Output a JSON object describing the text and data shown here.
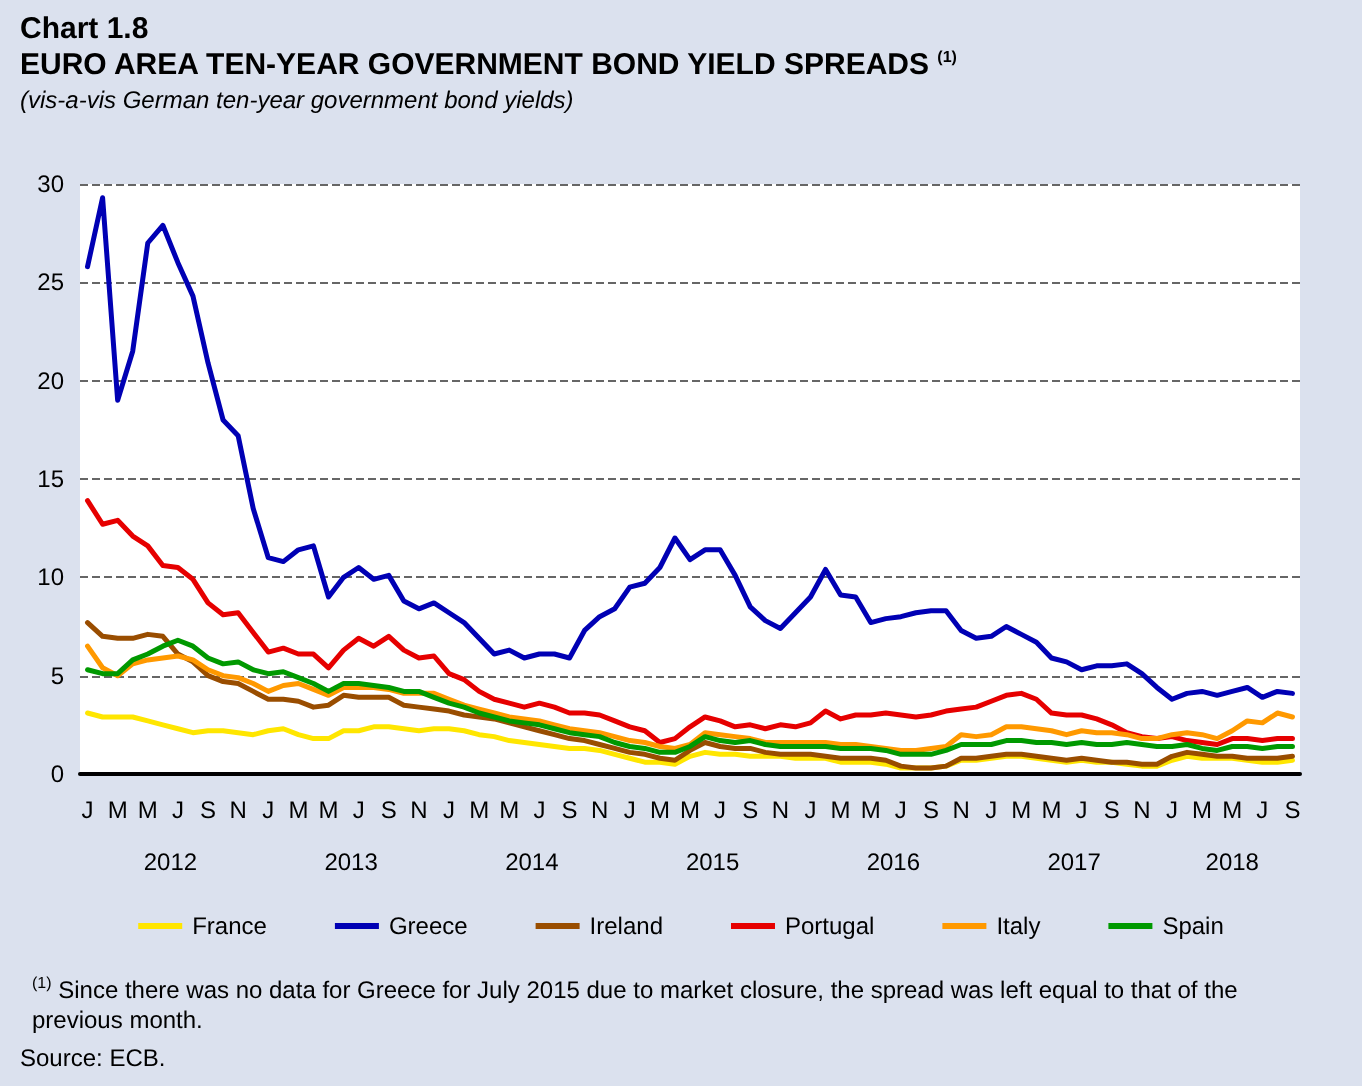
{
  "chart_data": {
    "type": "line",
    "title": "EURO AREA TEN-YEAR GOVERNMENT BOND YIELD SPREADS $^{(1)}$",
    "subtitle": "(vis-a-vis German ten-year government bond yields)",
    "annotations": [
      "Chart 1.8",
      "2012",
      "2013",
      "2014",
      "2015",
      "2016",
      "2017",
      "2018",
      "$^{(1)}$ Since there was no data for Greece for July 2015 due to market closure, the spread was left equal to that of the previous month.",
      "Source: ECB."
    ],
    "categories": [
      "J",
      null,
      "M",
      null,
      "M",
      null,
      "J",
      null,
      "S",
      null,
      "N",
      null,
      "J",
      null,
      "M",
      null,
      "M",
      null,
      "J",
      null,
      "S",
      null,
      "N",
      null,
      "J",
      null,
      "M",
      null,
      "M",
      null,
      "J",
      null,
      "S",
      null,
      "N",
      null,
      "J",
      null,
      "M",
      null,
      "M",
      null,
      "J",
      null,
      "S",
      null,
      "N",
      null,
      "J",
      null,
      "M",
      null,
      "M",
      null,
      "J",
      null,
      "S",
      null,
      "N",
      null,
      "J",
      null,
      "M",
      null,
      "M",
      null,
      "J",
      null,
      "S",
      null,
      "N",
      null,
      "J",
      null,
      "M",
      null,
      "M",
      null,
      "J",
      null,
      "S"
    ],
    "series": [
      {
        "name": "France",
        "color": "#ffe600",
        "values": [
          3.1,
          2.9,
          2.9,
          2.9,
          2.7,
          2.5,
          2.3,
          2.1,
          2.2,
          2.2,
          2.1,
          2.0,
          2.2,
          2.3,
          2.0,
          1.8,
          1.8,
          2.2,
          2.2,
          2.4,
          2.4,
          2.3,
          2.2,
          2.3,
          2.3,
          2.2,
          2.0,
          1.9,
          1.7,
          1.6,
          1.5,
          1.4,
          1.3,
          1.3,
          1.2,
          1.0,
          0.8,
          0.6,
          0.6,
          0.5,
          0.9,
          1.1,
          1.0,
          1.0,
          0.9,
          0.9,
          0.9,
          0.8,
          0.8,
          0.8,
          0.6,
          0.6,
          0.6,
          0.5,
          0.3,
          0.3,
          0.3,
          0.4,
          0.7,
          0.7,
          0.8,
          0.9,
          0.9,
          0.8,
          0.7,
          0.6,
          0.7,
          0.6,
          0.6,
          0.5,
          0.4,
          0.4,
          0.7,
          0.9,
          0.8,
          0.8,
          0.8,
          0.7,
          0.6,
          0.6,
          0.7
        ]
      },
      {
        "name": "Greece",
        "color": "#0000b4",
        "values": [
          25.8,
          29.3,
          19.0,
          21.5,
          27.0,
          27.9,
          26.0,
          24.3,
          20.9,
          18.0,
          17.2,
          13.5,
          11.0,
          10.8,
          11.4,
          11.6,
          9.0,
          10.0,
          10.5,
          9.9,
          10.1,
          8.8,
          8.4,
          8.7,
          8.2,
          7.7,
          6.9,
          6.1,
          6.3,
          5.9,
          6.1,
          6.1,
          5.9,
          7.3,
          8.0,
          8.4,
          9.5,
          9.7,
          10.5,
          12.0,
          10.9,
          11.4,
          11.4,
          10.1,
          8.5,
          7.8,
          7.4,
          8.2,
          9.0,
          10.4,
          9.1,
          9.0,
          7.7,
          7.9,
          8.0,
          8.2,
          8.3,
          8.3,
          7.3,
          6.9,
          7.0,
          7.5,
          7.1,
          6.7,
          5.9,
          5.7,
          5.3,
          5.5,
          5.5,
          5.6,
          5.1,
          4.4,
          3.8,
          4.1,
          4.2,
          4.0,
          4.2,
          4.4,
          3.9,
          4.2,
          4.1
        ]
      },
      {
        "name": "Ireland",
        "color": "#994d00",
        "values": [
          7.7,
          7.0,
          6.9,
          6.9,
          7.1,
          7.0,
          6.1,
          5.7,
          5.0,
          4.7,
          4.6,
          4.2,
          3.8,
          3.8,
          3.7,
          3.4,
          3.5,
          4.0,
          3.9,
          3.9,
          3.9,
          3.5,
          3.4,
          3.3,
          3.2,
          3.0,
          2.9,
          2.8,
          2.6,
          2.4,
          2.2,
          2.0,
          1.8,
          1.7,
          1.5,
          1.3,
          1.1,
          1.0,
          0.8,
          0.7,
          1.2,
          1.6,
          1.4,
          1.3,
          1.3,
          1.1,
          1.0,
          1.0,
          1.0,
          0.9,
          0.8,
          0.8,
          0.8,
          0.7,
          0.4,
          0.3,
          0.3,
          0.4,
          0.8,
          0.8,
          0.9,
          1.0,
          1.0,
          0.9,
          0.8,
          0.7,
          0.8,
          0.7,
          0.6,
          0.6,
          0.5,
          0.5,
          0.9,
          1.1,
          1.0,
          0.9,
          0.9,
          0.8,
          0.8,
          0.8,
          0.9
        ]
      },
      {
        "name": "Portugal",
        "color": "#e60000",
        "values": [
          13.9,
          12.7,
          12.9,
          12.1,
          11.6,
          10.6,
          10.5,
          9.9,
          8.7,
          8.1,
          8.2,
          7.2,
          6.2,
          6.4,
          6.1,
          6.1,
          5.4,
          6.3,
          6.9,
          6.5,
          7.0,
          6.3,
          5.9,
          6.0,
          5.1,
          4.8,
          4.2,
          3.8,
          3.6,
          3.4,
          3.6,
          3.4,
          3.1,
          3.1,
          3.0,
          2.7,
          2.4,
          2.2,
          1.6,
          1.8,
          2.4,
          2.9,
          2.7,
          2.4,
          2.5,
          2.3,
          2.5,
          2.4,
          2.6,
          3.2,
          2.8,
          3.0,
          3.0,
          3.1,
          3.0,
          2.9,
          3.0,
          3.2,
          3.3,
          3.4,
          3.7,
          4.0,
          4.1,
          3.8,
          3.1,
          3.0,
          3.0,
          2.8,
          2.5,
          2.1,
          1.9,
          1.8,
          1.9,
          1.7,
          1.6,
          1.5,
          1.8,
          1.8,
          1.7,
          1.8,
          1.8
        ]
      },
      {
        "name": "Italy",
        "color": "#ff9900",
        "values": [
          6.5,
          5.4,
          5.0,
          5.6,
          5.8,
          5.9,
          6.0,
          5.8,
          5.3,
          5.0,
          4.9,
          4.6,
          4.2,
          4.5,
          4.6,
          4.3,
          4.0,
          4.4,
          4.4,
          4.4,
          4.3,
          4.1,
          4.1,
          4.1,
          3.8,
          3.5,
          3.3,
          3.1,
          2.9,
          2.8,
          2.7,
          2.5,
          2.3,
          2.2,
          2.1,
          1.9,
          1.7,
          1.6,
          1.4,
          1.3,
          1.5,
          2.1,
          2.0,
          1.9,
          1.8,
          1.6,
          1.6,
          1.6,
          1.6,
          1.6,
          1.5,
          1.5,
          1.4,
          1.3,
          1.2,
          1.2,
          1.3,
          1.4,
          2.0,
          1.9,
          2.0,
          2.4,
          2.4,
          2.3,
          2.2,
          2.0,
          2.2,
          2.1,
          2.1,
          2.0,
          1.8,
          1.8,
          2.0,
          2.1,
          2.0,
          1.8,
          2.2,
          2.7,
          2.6,
          3.1,
          2.9
        ]
      },
      {
        "name": "Spain",
        "color": "#009900",
        "values": [
          5.3,
          5.1,
          5.1,
          5.8,
          6.1,
          6.5,
          6.8,
          6.5,
          5.9,
          5.6,
          5.7,
          5.3,
          5.1,
          5.2,
          4.9,
          4.6,
          4.2,
          4.6,
          4.6,
          4.5,
          4.4,
          4.2,
          4.2,
          3.9,
          3.6,
          3.4,
          3.1,
          2.9,
          2.7,
          2.6,
          2.5,
          2.3,
          2.1,
          2.0,
          1.9,
          1.6,
          1.4,
          1.3,
          1.1,
          1.1,
          1.4,
          1.9,
          1.7,
          1.6,
          1.7,
          1.5,
          1.4,
          1.4,
          1.4,
          1.4,
          1.3,
          1.3,
          1.3,
          1.2,
          1.0,
          1.0,
          1.0,
          1.2,
          1.5,
          1.5,
          1.5,
          1.7,
          1.7,
          1.6,
          1.6,
          1.5,
          1.6,
          1.5,
          1.5,
          1.6,
          1.5,
          1.4,
          1.4,
          1.5,
          1.3,
          1.2,
          1.4,
          1.4,
          1.3,
          1.4,
          1.4
        ]
      }
    ],
    "ylim": [
      0,
      30
    ],
    "yticks": [
      0,
      5,
      10,
      15,
      20,
      25,
      30
    ],
    "grid": "y",
    "legend": "bottom",
    "marker": "none",
    "line_style": "solid"
  }
}
